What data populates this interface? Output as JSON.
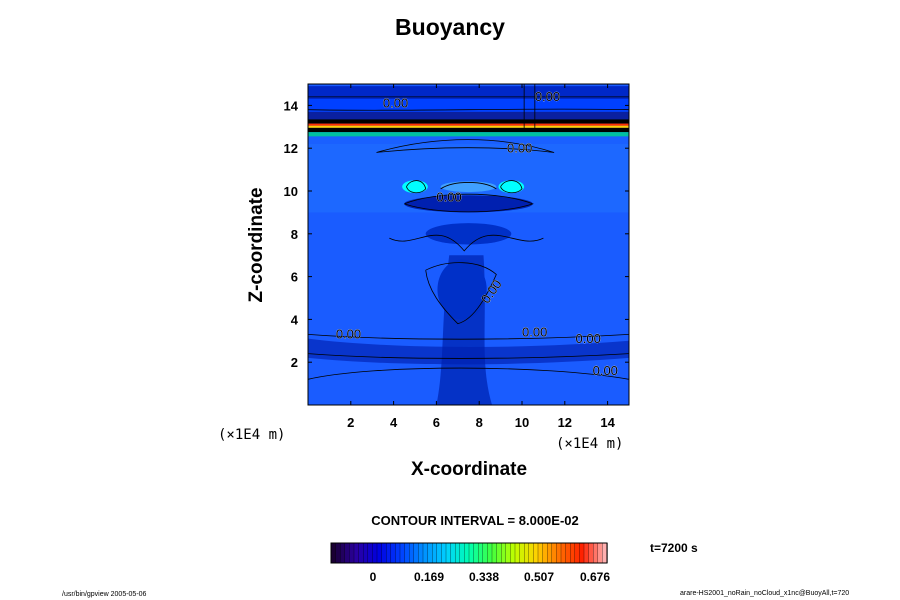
{
  "chart_data": {
    "type": "heatmap",
    "title": "Buoyancy",
    "xlabel": "X-coordinate",
    "ylabel": "Z-coordinate",
    "x_unit": "(×1E4 m)",
    "y_unit": "(×1E4 m)",
    "xlim": [
      0,
      15
    ],
    "ylim": [
      0,
      15
    ],
    "x_ticks": [
      2,
      4,
      6,
      8,
      10,
      12,
      14
    ],
    "y_ticks": [
      2,
      4,
      6,
      8,
      10,
      12,
      14
    ],
    "contour_interval_text": "CONTOUR INTERVAL = 8.000E-02",
    "colorbar_ticks": [
      "0",
      "0.169",
      "0.338",
      "0.507",
      "0.676"
    ],
    "colormap": [
      "#1a0033",
      "#2a00a0",
      "#0000e0",
      "#0040ff",
      "#0090ff",
      "#00d0ff",
      "#00ffb0",
      "#40ff40",
      "#c0ff00",
      "#ffd000",
      "#ff7000",
      "#ff2000",
      "#ffb0b0"
    ],
    "contour_labels": [
      "0.00",
      "0.00",
      "0.00",
      "0.00",
      "0.00",
      "0.00",
      "0.00",
      "0.00",
      "0.00"
    ],
    "time": "t=7200 s"
  },
  "footer": {
    "left": "/usr/bin/gpview 2005-05-06",
    "right": "arare-HS2001_noRain_noCloud_x1nc@BuoyAll,t=720"
  },
  "colors": {
    "background_field": "#1a5cff",
    "strong_positive": "#00ffff",
    "negative_layer": "#0020b0"
  }
}
